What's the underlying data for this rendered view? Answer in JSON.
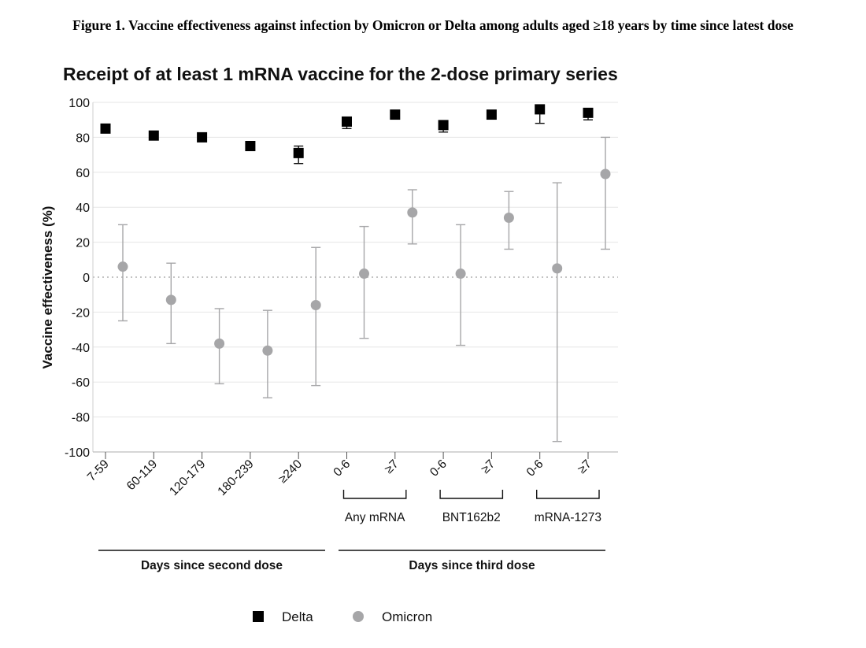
{
  "figure_caption": "Figure 1. Vaccine effectiveness against infection by Omicron or Delta among adults aged ≥18 years by time since latest dose",
  "chart_data": {
    "type": "scatter",
    "title": "Receipt of at least 1 mRNA vaccine for the 2-dose primary series",
    "ylabel": "Vaccine effectiveness (%)",
    "ylim": [
      -100,
      100
    ],
    "yticks": [
      "100",
      "80",
      "60",
      "40",
      "20",
      "0",
      "-20",
      "-40",
      "-60",
      "-80",
      "-100"
    ],
    "ytick_values": [
      100,
      80,
      60,
      40,
      20,
      0,
      -20,
      -40,
      -60,
      -80,
      -100
    ],
    "reference_line": 0,
    "grid": "horizontal",
    "categories": [
      "7-59",
      "60-119",
      "120-179",
      "180-239",
      "≥240",
      "0-6",
      "≥7",
      "0-6",
      "≥7",
      "0-6",
      "≥7"
    ],
    "groups": [
      {
        "label": "Any mRNA",
        "categories": [
          5,
          6
        ]
      },
      {
        "label": "BNT162b2",
        "categories": [
          7,
          8
        ]
      },
      {
        "label": "mRNA-1273",
        "categories": [
          9,
          10
        ]
      }
    ],
    "sections": [
      {
        "label": "Days since second dose",
        "categories": [
          0,
          4
        ]
      },
      {
        "label": "Days since third dose",
        "categories": [
          5,
          10
        ]
      }
    ],
    "series": [
      {
        "name": "Delta",
        "marker": "square",
        "color": "#000000",
        "values": [
          85,
          81,
          80,
          75,
          71,
          89,
          93,
          87,
          93,
          96,
          94
        ],
        "ci_low": [
          null,
          null,
          null,
          null,
          65,
          85,
          null,
          83,
          null,
          88,
          90
        ],
        "ci_high": [
          null,
          null,
          null,
          null,
          75,
          91,
          null,
          89,
          null,
          98,
          96
        ]
      },
      {
        "name": "Omicron",
        "marker": "circle",
        "color": "#a6a6a8",
        "values": [
          6,
          -13,
          -38,
          -42,
          -16,
          2,
          37,
          2,
          34,
          5,
          59
        ],
        "ci_low": [
          -25,
          -38,
          -61,
          -69,
          -62,
          -35,
          19,
          -39,
          16,
          -94,
          16
        ],
        "ci_high": [
          30,
          8,
          -18,
          -19,
          17,
          29,
          50,
          30,
          49,
          54,
          80
        ]
      }
    ],
    "legend": {
      "position": "bottom",
      "items": [
        "Delta",
        "Omicron"
      ]
    }
  }
}
